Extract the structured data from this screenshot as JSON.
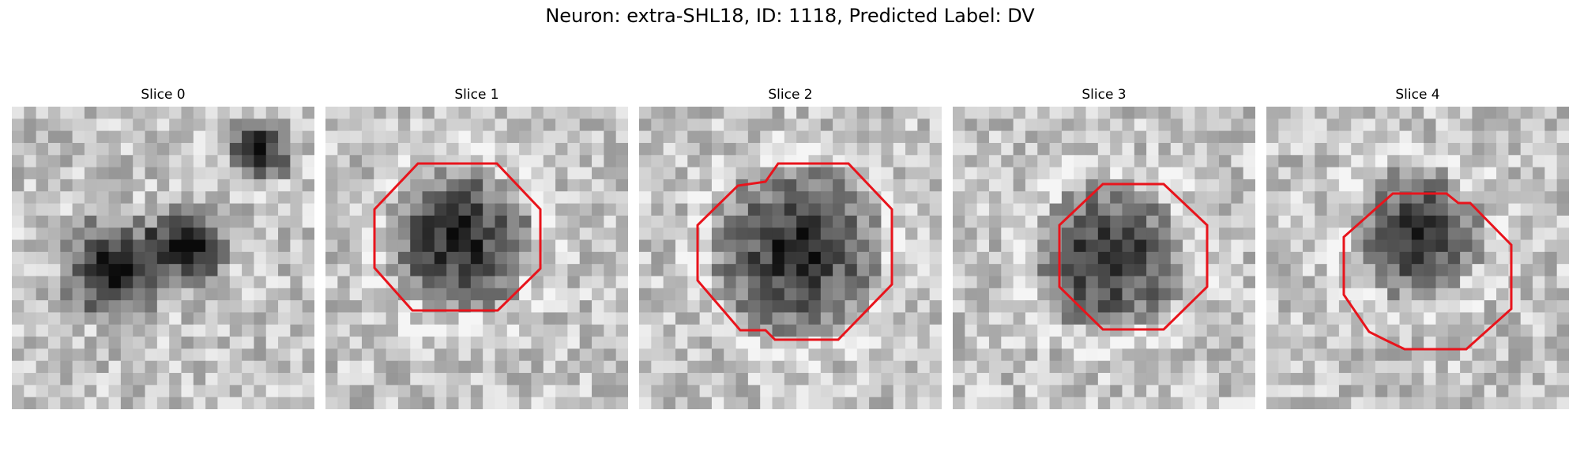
{
  "figure": {
    "title": "Neuron: extra-SHL18, ID: 1118, Predicted Label: DV",
    "contour_color": "#e8141c",
    "colormap": "grayscale",
    "panels": [
      {
        "label": "Slice 0",
        "contour": false
      },
      {
        "label": "Slice 1",
        "contour": true
      },
      {
        "label": "Slice 2",
        "contour": true
      },
      {
        "label": "Slice 3",
        "contour": true
      },
      {
        "label": "Slice 4",
        "contour": true
      }
    ]
  }
}
